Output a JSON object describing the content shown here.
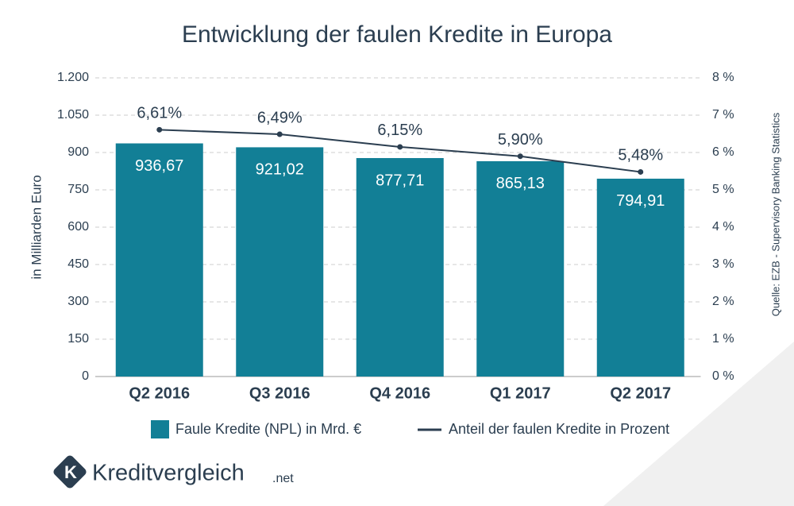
{
  "chart_data": {
    "type": "bar_line",
    "title": "Entwicklung der faulen Kredite in Europa",
    "y_label": "in Milliarden Euro",
    "source": "Quelle: EZB - Supervisory Banking Statistics",
    "categories": [
      "Q2 2016",
      "Q3 2016",
      "Q4 2016",
      "Q1 2017",
      "Q2 2017"
    ],
    "series": [
      {
        "name": "Faule Kredite (NPL) in Mrd. €",
        "color": "#127f96",
        "type": "bar",
        "values": [
          936.67,
          921.02,
          877.71,
          865.13,
          794.91
        ],
        "value_labels": [
          "936,67",
          "921,02",
          "877,71",
          "865,13",
          "794,91"
        ]
      },
      {
        "name": "Anteil der faulen Kredite in Prozent",
        "color": "#2b3e50",
        "type": "line",
        "axis": "y2",
        "values": [
          6.61,
          6.49,
          6.15,
          5.9,
          5.48
        ],
        "value_labels": [
          "6,61%",
          "6,49%",
          "6,15%",
          "5,90%",
          "5,48%"
        ]
      }
    ],
    "ylim": [
      0,
      1200
    ],
    "yticks": [
      0,
      150,
      300,
      450,
      600,
      750,
      900,
      {
        "value": 1050,
        "label": "1.050"
      },
      {
        "value": 1200,
        "label": "1.200"
      }
    ],
    "y2lim": [
      0,
      8
    ],
    "y2ticks": [
      {
        "value": 0,
        "label": "0 %"
      },
      {
        "value": 1,
        "label": "1 %"
      },
      {
        "value": 2,
        "label": "2 %"
      },
      {
        "value": 3,
        "label": "3 %"
      },
      {
        "value": 4,
        "label": "4 %"
      },
      {
        "value": 5,
        "label": "5 %"
      },
      {
        "value": 6,
        "label": "6 %"
      },
      {
        "value": 7,
        "label": "7 %"
      },
      {
        "value": 8,
        "label": "8 %"
      }
    ],
    "grid": true,
    "logo": {
      "name": "Kreditvergleich",
      "suffix": ".net"
    }
  }
}
